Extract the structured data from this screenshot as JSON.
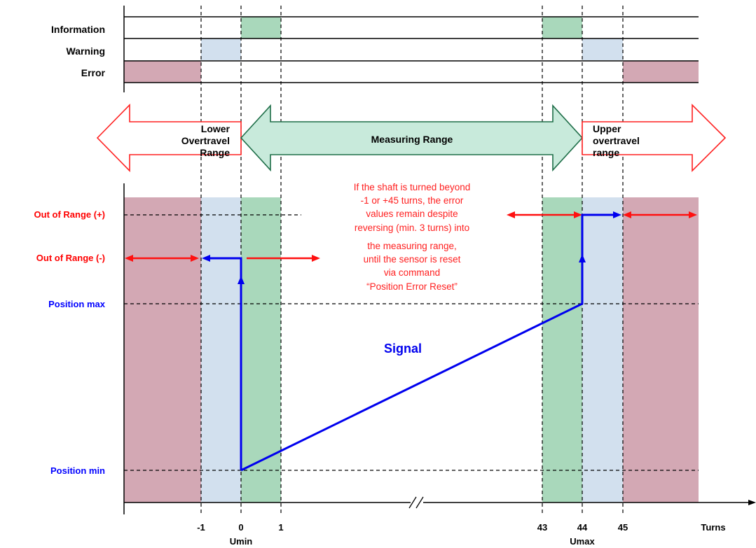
{
  "status_rows": {
    "information": "Information",
    "warning": "Warning",
    "error": "Error"
  },
  "ranges": {
    "lower": [
      "Lower",
      "Overtravel",
      "Range"
    ],
    "measuring": "Measuring Range",
    "upper": [
      "Upper",
      "overtravel",
      "range"
    ]
  },
  "y_labels": {
    "out_plus": "Out of Range (+)",
    "out_minus": "Out of Range (-)",
    "pos_max": "Position max",
    "pos_min": "Position  min"
  },
  "note": [
    "If the shaft is turned beyond",
    "-1 or +45 turns, the error",
    "values remain despite",
    "reversing (min. 3 turns) into",
    "the measuring range,",
    "until the sensor is reset",
    "via command",
    "“Position Error Reset”"
  ],
  "signal_label": "Signal",
  "x_axis": {
    "ticks": [
      "-1",
      "0",
      "1",
      "43",
      "44",
      "45"
    ],
    "unit": "Turns",
    "umin": "Umin",
    "umax": "Umax"
  },
  "colors": {
    "error": "#d3a8b4",
    "warning": "#d2e0ee",
    "information": "#a9d8bb",
    "signal": "#0000ee",
    "note": "#ff2020",
    "y_label_red": "#ff0000",
    "y_label_blue": "#0000ff",
    "measuring_arrow_fill": "#c8eadb",
    "measuring_arrow_stroke": "#1e6e48",
    "overtravel_arrow_stroke": "#ff2020"
  }
}
